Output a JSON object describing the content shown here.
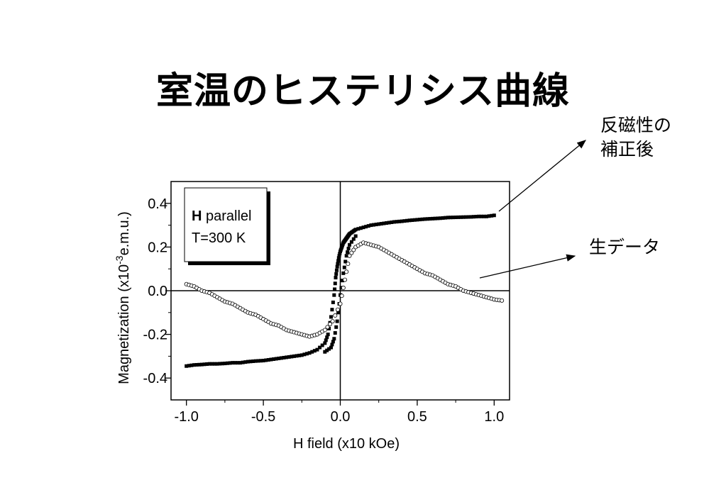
{
  "slide": {
    "title": "室温のヒステリシス曲線"
  },
  "annotations": {
    "corrected": [
      "反磁性の",
      "補正後"
    ],
    "raw": "生データ"
  },
  "legend_box": {
    "bold": "H",
    "rest": " parallel",
    "temp": "T=300 K"
  },
  "colors": {
    "axis": "#000000",
    "filled": "#000000",
    "open": "#ffffff"
  },
  "chart_data": {
    "type": "scatter",
    "title": "",
    "xlabel": "H field (x10 kOe)",
    "ylabel": "Magnetization (x10",
    "ylabel_exp": "-3",
    "ylabel_end": "e.m.u.)",
    "xlim": [
      -1.1,
      1.1
    ],
    "ylim": [
      -0.5,
      0.5
    ],
    "xticks": [
      -1.0,
      -0.5,
      0.0,
      0.5,
      1.0
    ],
    "xtick_labels": [
      "-1.0",
      "-0.5",
      "0.0",
      "0.5",
      "1.0"
    ],
    "yticks": [
      0.4,
      0.2,
      0.0,
      -0.2,
      -0.4
    ],
    "ytick_labels": [
      "0.4",
      "0.2",
      "0.0",
      "-0.2",
      "-0.4"
    ],
    "grid": false,
    "series": [
      {
        "marker": "filled-square",
        "x": [
          -1.0,
          -0.95,
          -0.9,
          -0.85,
          -0.8,
          -0.75,
          -0.7,
          -0.65,
          -0.6,
          -0.55,
          -0.5,
          -0.45,
          -0.4,
          -0.35,
          -0.3,
          -0.25,
          -0.2,
          -0.15,
          -0.1,
          -0.08,
          -0.06,
          -0.04,
          -0.03,
          -0.02,
          -0.01,
          0.0,
          0.01,
          0.02,
          0.03,
          0.04,
          0.05,
          0.06,
          0.08,
          0.1,
          0.15,
          0.2,
          0.25,
          0.3,
          0.35,
          0.4,
          0.45,
          0.5,
          0.55,
          0.6,
          0.65,
          0.7,
          0.75,
          0.8,
          0.85,
          0.9,
          0.95,
          1.0
        ],
        "y": [
          -0.345,
          -0.34,
          -0.338,
          -0.335,
          -0.335,
          -0.333,
          -0.33,
          -0.33,
          -0.325,
          -0.322,
          -0.32,
          -0.315,
          -0.31,
          -0.305,
          -0.3,
          -0.295,
          -0.285,
          -0.27,
          -0.24,
          -0.2,
          -0.12,
          -0.02,
          0.06,
          0.11,
          0.15,
          0.18,
          0.2,
          0.22,
          0.23,
          0.24,
          0.25,
          0.26,
          0.27,
          0.28,
          0.29,
          0.3,
          0.305,
          0.31,
          0.315,
          0.318,
          0.322,
          0.325,
          0.328,
          0.33,
          0.332,
          0.335,
          0.336,
          0.337,
          0.338,
          0.34,
          0.34,
          0.345
        ]
      },
      {
        "marker": "filled-square",
        "x": [
          -0.1,
          -0.06,
          -0.04,
          -0.02,
          0.0,
          0.02,
          0.04,
          0.06,
          0.1
        ],
        "y": [
          -0.28,
          -0.26,
          -0.22,
          -0.14,
          -0.02,
          0.08,
          0.16,
          0.21,
          0.25
        ]
      },
      {
        "marker": "open-circle",
        "x": [
          -1.0,
          -0.95,
          -0.9,
          -0.85,
          -0.8,
          -0.75,
          -0.7,
          -0.65,
          -0.6,
          -0.55,
          -0.5,
          -0.45,
          -0.4,
          -0.35,
          -0.3,
          -0.25,
          -0.2,
          -0.15,
          -0.1,
          -0.05,
          0.0,
          0.03,
          0.06,
          0.1,
          0.15,
          0.2,
          0.25,
          0.3,
          0.35,
          0.4,
          0.45,
          0.5,
          0.55,
          0.6,
          0.65,
          0.7,
          0.75,
          0.8,
          0.85,
          0.9,
          0.95,
          1.0,
          1.05
        ],
        "y": [
          0.03,
          0.02,
          0.0,
          -0.01,
          -0.03,
          -0.05,
          -0.06,
          -0.08,
          -0.1,
          -0.11,
          -0.13,
          -0.15,
          -0.16,
          -0.18,
          -0.19,
          -0.2,
          -0.21,
          -0.2,
          -0.18,
          -0.14,
          -0.06,
          0.05,
          0.16,
          0.2,
          0.22,
          0.21,
          0.2,
          0.18,
          0.16,
          0.14,
          0.12,
          0.1,
          0.08,
          0.07,
          0.05,
          0.03,
          0.02,
          0.0,
          -0.01,
          -0.02,
          -0.03,
          -0.04,
          -0.045
        ]
      }
    ]
  }
}
